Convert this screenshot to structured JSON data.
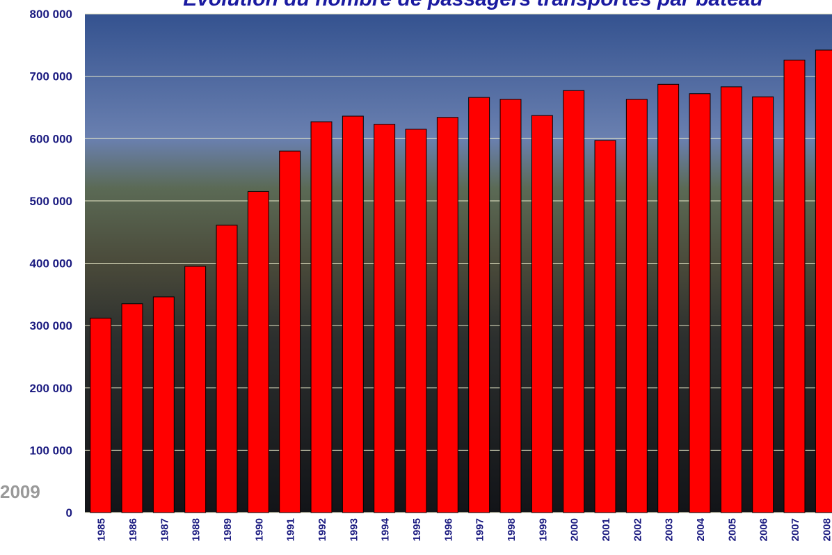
{
  "chart_data": {
    "type": "bar",
    "title": "Evolution du nombre de passagers transportés par bateau",
    "note": "2009",
    "categories": [
      "1985",
      "1986",
      "1987",
      "1988",
      "1989",
      "1990",
      "1991",
      "1992",
      "1993",
      "1994",
      "1995",
      "1996",
      "1997",
      "1998",
      "1999",
      "2000",
      "2001",
      "2002",
      "2003",
      "2004",
      "2005",
      "2006",
      "2007",
      "2008"
    ],
    "values": [
      312000,
      335000,
      346000,
      395000,
      461000,
      515000,
      580000,
      627000,
      636000,
      623000,
      615000,
      634000,
      666000,
      663000,
      637000,
      677000,
      597000,
      663000,
      687000,
      672000,
      683000,
      667000,
      726000,
      742000
    ],
    "color": "#ff0000",
    "ylim": [
      0,
      800000
    ],
    "yticks": [
      0,
      {
        "value": 100000,
        "label": "100 000"
      },
      {
        "value": 200000,
        "label": "200 000"
      },
      {
        "value": 300000,
        "label": "300 000"
      },
      {
        "value": 400000,
        "label": "400 000"
      },
      {
        "value": 500000,
        "label": "500 000"
      },
      {
        "value": 600000,
        "label": "600 000"
      },
      {
        "value": 700000,
        "label": "700 000"
      },
      {
        "value": 800000,
        "label": "800 000"
      }
    ],
    "grid": true
  }
}
